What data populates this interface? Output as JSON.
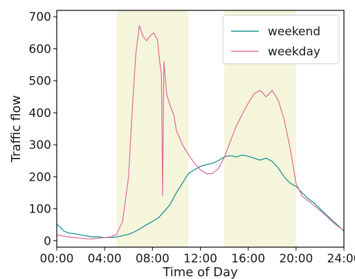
{
  "chart_data": {
    "type": "line",
    "xlabel": "Time of Day",
    "ylabel": "Traffic flow",
    "xlim": [
      0,
      24
    ],
    "ylim": [
      -20,
      720
    ],
    "x_ticks": [
      {
        "value": 0,
        "label": "00:00"
      },
      {
        "value": 4,
        "label": "04:00"
      },
      {
        "value": 8,
        "label": "08:00"
      },
      {
        "value": 12,
        "label": "12:00"
      },
      {
        "value": 16,
        "label": "16:00"
      },
      {
        "value": 20,
        "label": "20:00"
      },
      {
        "value": 24,
        "label": "24:00"
      }
    ],
    "y_ticks": [
      {
        "value": 0,
        "label": "0"
      },
      {
        "value": 100,
        "label": "100"
      },
      {
        "value": 200,
        "label": "200"
      },
      {
        "value": 300,
        "label": "300"
      },
      {
        "value": 400,
        "label": "400"
      },
      {
        "value": 500,
        "label": "500"
      },
      {
        "value": 600,
        "label": "600"
      },
      {
        "value": 700,
        "label": "700"
      }
    ],
    "grid": false,
    "legend_position": "top-right",
    "shaded_regions": [
      {
        "x_start": 5,
        "x_end": 11,
        "color": "#f5f5dc"
      },
      {
        "x_start": 14,
        "x_end": 20,
        "color": "#f5f5dc"
      }
    ],
    "series": [
      {
        "name": "weekend",
        "color": "#1a9090",
        "points": [
          [
            0,
            52
          ],
          [
            0.3,
            42
          ],
          [
            0.6,
            30
          ],
          [
            1,
            24
          ],
          [
            1.5,
            22
          ],
          [
            2,
            18
          ],
          [
            2.5,
            15
          ],
          [
            3,
            12
          ],
          [
            3.5,
            12
          ],
          [
            4,
            10
          ],
          [
            4.5,
            10
          ],
          [
            5,
            12
          ],
          [
            5.5,
            16
          ],
          [
            6,
            20
          ],
          [
            6.5,
            28
          ],
          [
            7,
            38
          ],
          [
            7.5,
            50
          ],
          [
            8,
            60
          ],
          [
            8.5,
            72
          ],
          [
            9,
            92
          ],
          [
            9.5,
            115
          ],
          [
            10,
            150
          ],
          [
            10.5,
            180
          ],
          [
            11,
            210
          ],
          [
            11.5,
            222
          ],
          [
            12,
            232
          ],
          [
            12.5,
            238
          ],
          [
            13,
            242
          ],
          [
            13.5,
            250
          ],
          [
            14,
            262
          ],
          [
            14.5,
            266
          ],
          [
            15,
            262
          ],
          [
            15.5,
            268
          ],
          [
            16,
            264
          ],
          [
            16.5,
            258
          ],
          [
            17,
            252
          ],
          [
            17.5,
            258
          ],
          [
            18,
            248
          ],
          [
            18.5,
            228
          ],
          [
            19,
            200
          ],
          [
            19.5,
            180
          ],
          [
            20,
            170
          ],
          [
            20.5,
            150
          ],
          [
            21,
            132
          ],
          [
            21.5,
            118
          ],
          [
            22,
            100
          ],
          [
            22.5,
            82
          ],
          [
            23,
            65
          ],
          [
            23.5,
            48
          ],
          [
            24,
            30
          ]
        ]
      },
      {
        "name": "weekday",
        "color": "#e0709a",
        "points": [
          [
            0,
            18
          ],
          [
            0.5,
            15
          ],
          [
            1,
            12
          ],
          [
            1.5,
            10
          ],
          [
            2,
            8
          ],
          [
            2.5,
            6
          ],
          [
            3,
            6
          ],
          [
            3.5,
            8
          ],
          [
            4,
            10
          ],
          [
            4.5,
            12
          ],
          [
            5,
            20
          ],
          [
            5.5,
            60
          ],
          [
            6,
            200
          ],
          [
            6.3,
            400
          ],
          [
            6.6,
            580
          ],
          [
            6.9,
            672
          ],
          [
            7.2,
            640
          ],
          [
            7.5,
            625
          ],
          [
            7.8,
            640
          ],
          [
            8.1,
            650
          ],
          [
            8.4,
            630
          ],
          [
            8.6,
            560
          ],
          [
            8.75,
            520
          ],
          [
            8.85,
            140
          ],
          [
            8.95,
            560
          ],
          [
            9.2,
            455
          ],
          [
            9.5,
            420
          ],
          [
            9.8,
            390
          ],
          [
            10,
            345
          ],
          [
            10.5,
            300
          ],
          [
            11,
            270
          ],
          [
            11.5,
            242
          ],
          [
            12,
            222
          ],
          [
            12.5,
            210
          ],
          [
            13,
            210
          ],
          [
            13.5,
            225
          ],
          [
            14,
            260
          ],
          [
            14.5,
            310
          ],
          [
            15,
            358
          ],
          [
            15.5,
            395
          ],
          [
            16,
            430
          ],
          [
            16.5,
            460
          ],
          [
            17,
            470
          ],
          [
            17.5,
            450
          ],
          [
            18,
            470
          ],
          [
            18.5,
            440
          ],
          [
            19,
            380
          ],
          [
            19.5,
            290
          ],
          [
            20,
            180
          ],
          [
            20.5,
            140
          ],
          [
            21,
            125
          ],
          [
            21.5,
            110
          ],
          [
            22,
            95
          ],
          [
            22.5,
            78
          ],
          [
            23,
            60
          ],
          [
            23.5,
            45
          ],
          [
            24,
            32
          ]
        ]
      }
    ]
  }
}
